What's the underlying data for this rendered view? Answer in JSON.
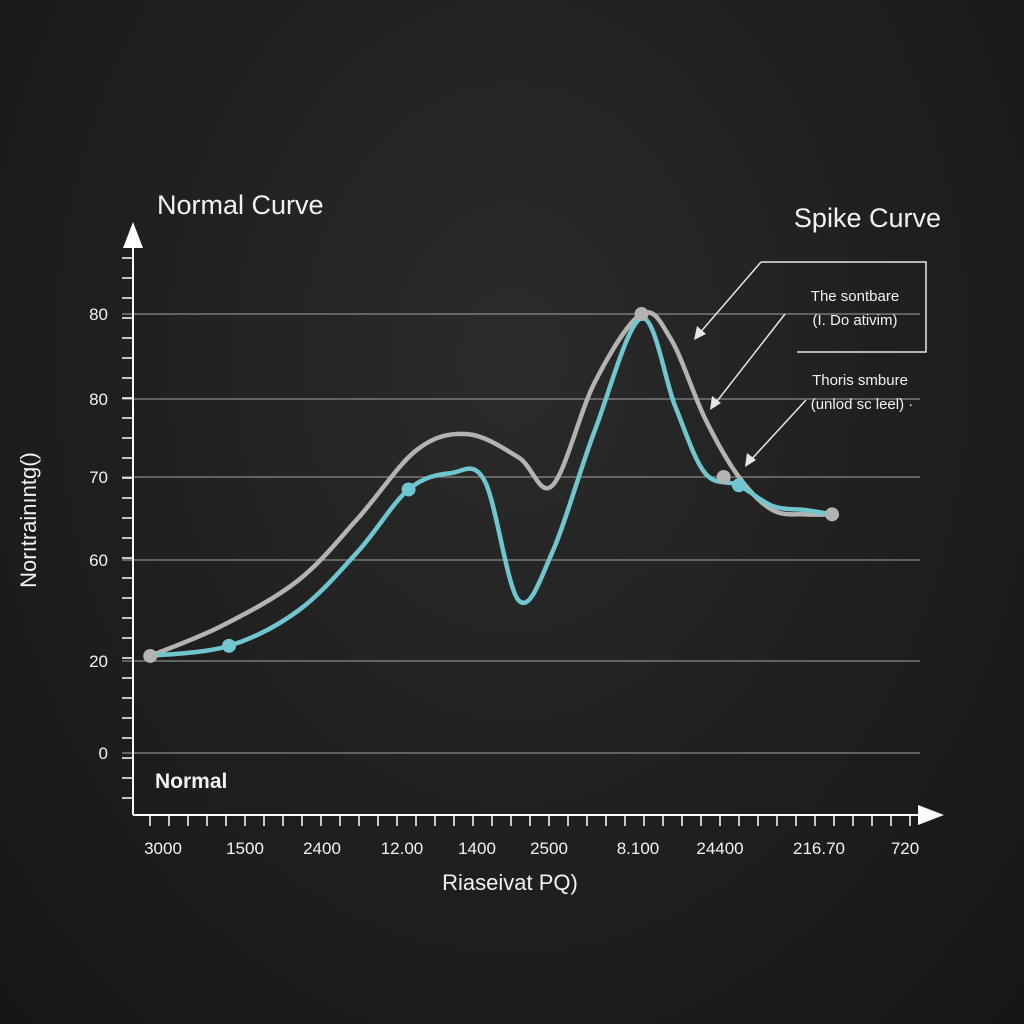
{
  "chart_data": {
    "type": "line",
    "title_left": "Normal Curve",
    "title_right": "Spike Curve",
    "xlabel": "Riaseivat PQ)",
    "ylabel": "Norıtrainıntg()",
    "corner_label": "Normal",
    "y_tick_labels": [
      "80",
      "80",
      "70",
      "60",
      "20",
      "0"
    ],
    "x_tick_labels": [
      "3000",
      "1500",
      "2400",
      "12.00",
      "1400",
      "2500",
      "8.100",
      "24400",
      "216.70",
      "720"
    ],
    "annotations": [
      {
        "line1": "The sontbare",
        "line2": "(I. Do ativim)"
      },
      {
        "line1": "Thoris smbure",
        "line2": "(unlod sc leel) ·"
      }
    ],
    "x_domain": [
      0,
      9
    ],
    "y_scale_note": "tick labels irregular; values read in tick-index units (0 = bottom '0', 5 = top '80')",
    "series": [
      {
        "color": "#b3b3b3",
        "points": [
          [
            0.05,
            1.05
          ],
          [
            0.9,
            1.35
          ],
          [
            1.8,
            1.8
          ],
          [
            2.5,
            2.5
          ],
          [
            3.2,
            3.35
          ],
          [
            3.8,
            3.55
          ],
          [
            4.4,
            3.25
          ],
          [
            4.8,
            2.9
          ],
          [
            5.3,
            4.2
          ],
          [
            5.85,
            5.0
          ],
          [
            6.2,
            4.7
          ],
          [
            6.6,
            3.75
          ],
          [
            7.0,
            3.0
          ],
          [
            7.4,
            2.6
          ],
          [
            7.8,
            2.55
          ],
          [
            8.1,
            2.55
          ]
        ]
      },
      {
        "color": "#6fc6cf",
        "points": [
          [
            0.05,
            1.05
          ],
          [
            0.98,
            1.15
          ],
          [
            1.8,
            1.5
          ],
          [
            2.5,
            2.1
          ],
          [
            3.1,
            2.85
          ],
          [
            3.6,
            3.05
          ],
          [
            4.0,
            2.95
          ],
          [
            4.4,
            1.6
          ],
          [
            4.8,
            2.1
          ],
          [
            5.3,
            3.6
          ],
          [
            5.85,
            4.95
          ],
          [
            6.25,
            3.9
          ],
          [
            6.6,
            3.05
          ],
          [
            7.0,
            2.9
          ],
          [
            7.4,
            2.65
          ],
          [
            7.8,
            2.6
          ],
          [
            8.1,
            2.55
          ]
        ]
      }
    ],
    "markers": [
      {
        "series": 0,
        "x": 0.05,
        "y": 1.05
      },
      {
        "series": 1,
        "x": 0.98,
        "y": 1.15
      },
      {
        "series": 1,
        "x": 3.1,
        "y": 2.85
      },
      {
        "series": 0,
        "x": 5.85,
        "y": 5.0
      },
      {
        "series": 0,
        "x": 6.82,
        "y": 3.0
      },
      {
        "series": 1,
        "x": 7.0,
        "y": 2.9
      },
      {
        "series": 0,
        "x": 8.1,
        "y": 2.55
      }
    ],
    "grid": true
  }
}
